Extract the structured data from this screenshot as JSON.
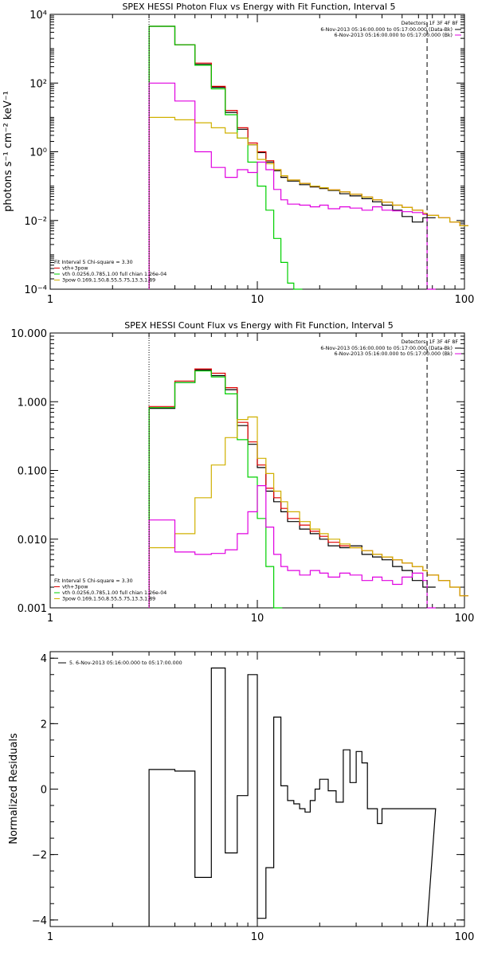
{
  "chart_data": [
    {
      "type": "line",
      "title": "SPEX HESSI Photon Flux vs Energy with Fit Function, Interval 5",
      "xlabel": "",
      "ylabel": "photons s⁻¹ cm⁻² keV⁻¹",
      "xscale": "log",
      "yscale": "log",
      "xlim": [
        1,
        100
      ],
      "ylim": [
        0.0001,
        10000
      ],
      "x_tick_labels": [
        "1",
        "10",
        "100"
      ],
      "y_tick_labels": [
        "10⁻⁴",
        "10⁻²",
        "10⁰",
        "10²",
        "10⁴"
      ],
      "detector_header": "Detectors: 1F 3F 4F 8F",
      "vlines": [
        {
          "x": 3.0,
          "style": "dotted"
        },
        {
          "x": 66.0,
          "style": "dashed"
        }
      ],
      "legend_top": [
        {
          "label": "6-Nov-2013 05:16:00.000 to 05:17:00.000 (Data-Bk)",
          "color": "#000000"
        },
        {
          "label": "6-Nov-2013 05:16:00.000 to 05:17:00.000 (Bk)",
          "color": "#e000e0"
        }
      ],
      "legend_bottom": [
        {
          "label": "Fit Interval 5   Chi-square = 3.30",
          "color": ""
        },
        {
          "label": "vth+3pow",
          "color": "#e00000"
        },
        {
          "label": "vth 0.0256,0.785,1.00  full chian 1.26e-04",
          "color": "#00d000"
        },
        {
          "label": "3pow 0.169,1.50,8.55,5.75,13.3,1.89",
          "color": "#d0b000"
        }
      ],
      "series": [
        {
          "name": "Data-Bk",
          "color": "#000000",
          "x": [
            3,
            4,
            5,
            6,
            7,
            8,
            9,
            10,
            11,
            12,
            13,
            14,
            16,
            18,
            20,
            22,
            25,
            28,
            32,
            36,
            40,
            45,
            50,
            56,
            63,
            66
          ],
          "values": [
            4500,
            1300,
            350,
            75,
            14,
            4.5,
            1.6,
            0.95,
            0.5,
            0.28,
            0.18,
            0.14,
            0.11,
            0.095,
            0.085,
            0.075,
            0.06,
            0.052,
            0.043,
            0.035,
            0.028,
            0.02,
            0.013,
            0.009,
            0.012,
            0.012
          ]
        },
        {
          "name": "vth+3pow",
          "color": "#e00000",
          "x": [
            3,
            4,
            5,
            6,
            7,
            8,
            9,
            10,
            11,
            12,
            13,
            14,
            16,
            18,
            20,
            22,
            25,
            28,
            32,
            36,
            40,
            45,
            50,
            56,
            63,
            66,
            75,
            85,
            95
          ],
          "values": [
            4500,
            1300,
            380,
            80,
            16,
            5,
            1.8,
            1.0,
            0.55,
            0.3,
            0.2,
            0.15,
            0.12,
            0.1,
            0.09,
            0.078,
            0.068,
            0.058,
            0.048,
            0.04,
            0.034,
            0.028,
            0.024,
            0.02,
            0.016,
            0.014,
            0.012,
            0.009,
            0.007
          ]
        },
        {
          "name": "vth",
          "color": "#00d000",
          "x": [
            3,
            4,
            5,
            6,
            7,
            8,
            9,
            10,
            11,
            12,
            13,
            14,
            15
          ],
          "values": [
            4500,
            1300,
            330,
            68,
            12,
            2.5,
            0.5,
            0.1,
            0.02,
            0.003,
            0.0006,
            0.00015,
            0.0001
          ]
        },
        {
          "name": "3pow",
          "color": "#d0b000",
          "x": [
            3,
            4,
            5,
            6,
            7,
            8,
            9,
            10,
            11,
            12,
            13,
            14,
            16,
            18,
            20,
            22,
            25,
            28,
            32,
            36,
            40,
            45,
            50,
            56,
            63,
            66,
            75,
            85,
            95
          ],
          "values": [
            10,
            8.5,
            7,
            5,
            3.5,
            2.5,
            1.6,
            0.6,
            0.45,
            0.3,
            0.2,
            0.15,
            0.12,
            0.1,
            0.09,
            0.078,
            0.068,
            0.058,
            0.048,
            0.04,
            0.034,
            0.028,
            0.024,
            0.02,
            0.016,
            0.014,
            0.012,
            0.009,
            0.007
          ]
        },
        {
          "name": "Bk",
          "color": "#e000e0",
          "x": [
            3,
            4,
            5,
            6,
            7,
            8,
            9,
            10,
            11,
            12,
            13,
            14,
            16,
            18,
            20,
            22,
            25,
            28,
            32,
            36,
            40,
            45,
            50,
            56,
            63,
            66
          ],
          "values": [
            100,
            30,
            1.0,
            0.35,
            0.18,
            0.3,
            0.25,
            0.5,
            0.3,
            0.08,
            0.04,
            0.03,
            0.028,
            0.025,
            0.028,
            0.022,
            0.025,
            0.023,
            0.02,
            0.025,
            0.02,
            0.019,
            0.018,
            0.017,
            0.015,
            0.0001
          ]
        }
      ]
    },
    {
      "type": "line",
      "title": "SPEX HESSI Count Flux vs Energy with Fit Function, Interval 5",
      "xlabel": "",
      "ylabel": "",
      "xscale": "log",
      "yscale": "log",
      "xlim": [
        1,
        100
      ],
      "ylim": [
        0.001,
        10
      ],
      "x_tick_labels": [
        "1",
        "10",
        "100"
      ],
      "y_tick_labels": [
        "0.001",
        "0.010",
        "0.100",
        "1.000",
        "10.000"
      ],
      "detector_header": "Detectors: 1F 3F 4F 8F",
      "vlines": [
        {
          "x": 3.0,
          "style": "dotted"
        },
        {
          "x": 66.0,
          "style": "dashed"
        }
      ],
      "legend_top": [
        {
          "label": "6-Nov-2013 05:16:00.000 to 05:17:00.000 (Data-Bk)",
          "color": "#000000"
        },
        {
          "label": "6-Nov-2013 05:16:00.000 to 05:17:00.000 (Bk)",
          "color": "#e000e0"
        }
      ],
      "legend_bottom": [
        {
          "label": "Fit Interval 5   Chi-square = 3.30",
          "color": ""
        },
        {
          "label": "vth+3pow",
          "color": "#e00000"
        },
        {
          "label": "vth 0.0256,0.785,1.00  full chian 1.26e-04",
          "color": "#00d000"
        },
        {
          "label": "3pow 0.169,1.50,8.55,5.75,13.3,1.89",
          "color": "#d0b000"
        }
      ],
      "series": [
        {
          "name": "Data-Bk",
          "color": "#000000",
          "x": [
            3,
            4,
            5,
            6,
            7,
            8,
            9,
            10,
            11,
            12,
            13,
            14,
            16,
            18,
            20,
            22,
            25,
            28,
            32,
            36,
            40,
            45,
            50,
            56,
            63,
            66
          ],
          "values": [
            0.8,
            1.9,
            2.9,
            2.4,
            1.5,
            0.45,
            0.24,
            0.11,
            0.05,
            0.035,
            0.025,
            0.018,
            0.014,
            0.012,
            0.01,
            0.008,
            0.0075,
            0.008,
            0.006,
            0.0055,
            0.005,
            0.004,
            0.0035,
            0.0025,
            0.002,
            0.002
          ]
        },
        {
          "name": "vth+3pow",
          "color": "#e00000",
          "x": [
            3,
            4,
            5,
            6,
            7,
            8,
            9,
            10,
            11,
            12,
            13,
            14,
            16,
            18,
            20,
            22,
            25,
            28,
            32,
            36,
            40,
            45,
            50,
            56,
            63,
            66,
            75,
            85,
            95
          ],
          "values": [
            0.85,
            2.0,
            3.0,
            2.6,
            1.6,
            0.5,
            0.26,
            0.12,
            0.055,
            0.04,
            0.028,
            0.02,
            0.016,
            0.013,
            0.011,
            0.009,
            0.008,
            0.0075,
            0.0068,
            0.006,
            0.0055,
            0.005,
            0.0045,
            0.004,
            0.0035,
            0.003,
            0.0025,
            0.002,
            0.0015
          ]
        },
        {
          "name": "vth",
          "color": "#00d000",
          "x": [
            3,
            4,
            5,
            6,
            7,
            8,
            9,
            10,
            11,
            12
          ],
          "values": [
            0.82,
            1.9,
            2.8,
            2.3,
            1.3,
            0.28,
            0.08,
            0.02,
            0.004,
            0.001
          ]
        },
        {
          "name": "3pow",
          "color": "#d0b000",
          "x": [
            3,
            4,
            5,
            6,
            7,
            8,
            9,
            10,
            11,
            12,
            13,
            14,
            16,
            18,
            20,
            22,
            25,
            28,
            32,
            36,
            40,
            45,
            50,
            56,
            63,
            66,
            75,
            85,
            95
          ],
          "values": [
            0.0075,
            0.012,
            0.04,
            0.12,
            0.3,
            0.55,
            0.6,
            0.15,
            0.09,
            0.05,
            0.035,
            0.025,
            0.018,
            0.014,
            0.012,
            0.01,
            0.0085,
            0.0075,
            0.0068,
            0.006,
            0.0055,
            0.005,
            0.0045,
            0.004,
            0.0035,
            0.003,
            0.0025,
            0.002,
            0.0015
          ]
        },
        {
          "name": "Bk",
          "color": "#e000e0",
          "x": [
            3,
            4,
            5,
            6,
            7,
            8,
            9,
            10,
            11,
            12,
            13,
            14,
            16,
            18,
            20,
            22,
            25,
            28,
            32,
            36,
            40,
            45,
            50,
            56,
            63,
            66
          ],
          "values": [
            0.019,
            0.0065,
            0.006,
            0.0062,
            0.007,
            0.012,
            0.025,
            0.06,
            0.015,
            0.006,
            0.004,
            0.0035,
            0.003,
            0.0035,
            0.0032,
            0.0028,
            0.0032,
            0.003,
            0.0025,
            0.0028,
            0.0025,
            0.0022,
            0.0028,
            0.0032,
            0.0025,
            0.001
          ]
        }
      ]
    },
    {
      "type": "line",
      "title": "",
      "xlabel": "",
      "ylabel": "Normalized Residuals",
      "xscale": "log",
      "yscale": "linear",
      "xlim": [
        1,
        100
      ],
      "ylim": [
        -4.2,
        4.2
      ],
      "x_tick_labels": [
        "1",
        "10",
        "100"
      ],
      "y_tick_labels": [
        "−4",
        "−2",
        "0",
        "2",
        "4"
      ],
      "legend_top": [
        {
          "label": "5.  6-Nov-2013 05:16:00.000 to 05:17:00.000",
          "color": "#000000"
        }
      ],
      "series": [
        {
          "name": "",
          "color": "#000000",
          "x": [
            3,
            4,
            5,
            6,
            7,
            8,
            9,
            10,
            11,
            12,
            13,
            14,
            15,
            16,
            17,
            18,
            19,
            20,
            22,
            24,
            26,
            28,
            30,
            32,
            34,
            36,
            38,
            40,
            45,
            50,
            56,
            63,
            66
          ],
          "values": [
            0.6,
            0.55,
            -2.7,
            3.7,
            -1.95,
            -0.2,
            3.5,
            -3.95,
            -2.4,
            2.2,
            0.1,
            -0.35,
            -0.45,
            -0.6,
            -0.7,
            -0.35,
            0,
            0.3,
            -0.05,
            -0.4,
            1.2,
            0.2,
            1.15,
            0.8,
            -0.6,
            -0.6,
            -1.05,
            -0.6,
            -0.6,
            -0.6,
            -0.6,
            -0.6,
            -0.6
          ]
        }
      ]
    }
  ]
}
